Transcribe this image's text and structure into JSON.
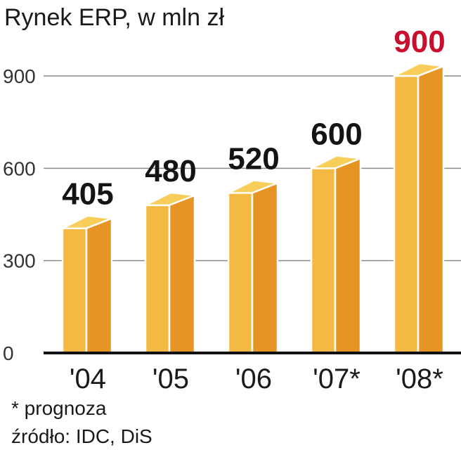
{
  "chart_data": {
    "type": "bar",
    "title": "Rynek ERP, w mln zł",
    "categories": [
      "'04",
      "'05",
      "'06",
      "'07*",
      "'08*"
    ],
    "values": [
      405,
      480,
      520,
      600,
      900
    ],
    "value_labels": [
      "405",
      "480",
      "520",
      "600",
      "900"
    ],
    "yticks": [
      0,
      300,
      600,
      900
    ],
    "ylim": [
      0,
      900
    ],
    "grid": true,
    "highlight_index": 4,
    "highlight_color": "#c8102e",
    "bar_colors": {
      "front": "#f4b942",
      "side": "#e69524",
      "top": "#f9cd5a"
    }
  },
  "footnotes": {
    "forecast_note": "* prognoza",
    "source": "źródło: IDC, DiS"
  }
}
